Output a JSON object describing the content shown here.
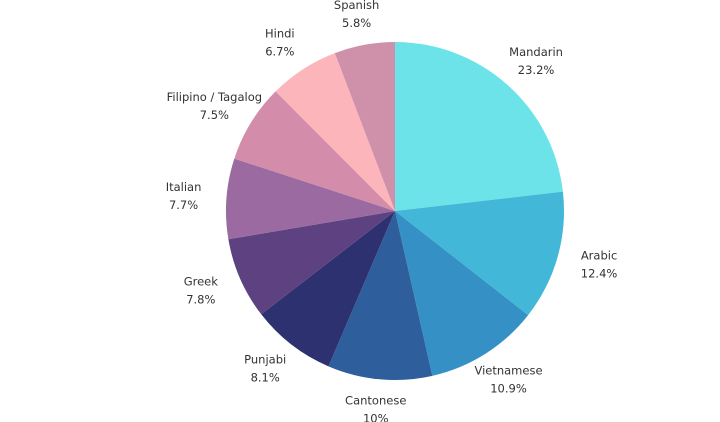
{
  "chart_data": {
    "type": "pie",
    "categories": [
      "Mandarin",
      "Arabic",
      "Vietnamese",
      "Cantonese",
      "Punjabi",
      "Greek",
      "Italian",
      "Filipino / Tagalog",
      "Hindi",
      "Spanish"
    ],
    "values": [
      23.2,
      12.4,
      10.9,
      10,
      8.1,
      7.8,
      7.7,
      7.5,
      6.7,
      5.8
    ],
    "value_labels": [
      "23.2%",
      "12.4%",
      "10.9%",
      "10%",
      "8.1%",
      "7.8%",
      "7.7%",
      "7.5%",
      "6.7%",
      "5.8%"
    ],
    "colors": [
      "#6be3e8",
      "#42b7d7",
      "#3591c5",
      "#2e5f9c",
      "#2d3170",
      "#5e4181",
      "#9a6aa0",
      "#d38ca9",
      "#fdb5bc",
      "#cf90aa"
    ]
  }
}
